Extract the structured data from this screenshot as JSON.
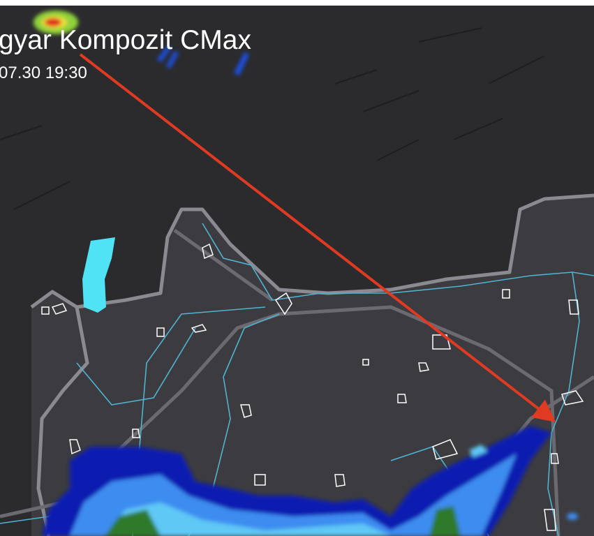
{
  "map": {
    "title": "gyar Kompozit CMax",
    "timestamp": "07.30 19:30",
    "layers": [
      "hillshade-terrain",
      "country-borders",
      "rivers",
      "lakes",
      "city-outlines",
      "radar-reflectivity"
    ],
    "colors": {
      "background": "#2b2b2e",
      "country_area": "#3b3b3f",
      "border": "#8a8a90",
      "river": "#4fb3d3",
      "lake": "#4fe3f5",
      "city_outline": "#ffffff",
      "annotation_arrow": "#e03a22",
      "radar_scale": [
        "#0a1fb0",
        "#1e50e0",
        "#3d8cf0",
        "#5ec8f5",
        "#2f7a2a",
        "#8fd13a",
        "#f0e040",
        "#e02a1a"
      ]
    },
    "annotation": {
      "type": "arrow",
      "direction": "southeast"
    }
  }
}
